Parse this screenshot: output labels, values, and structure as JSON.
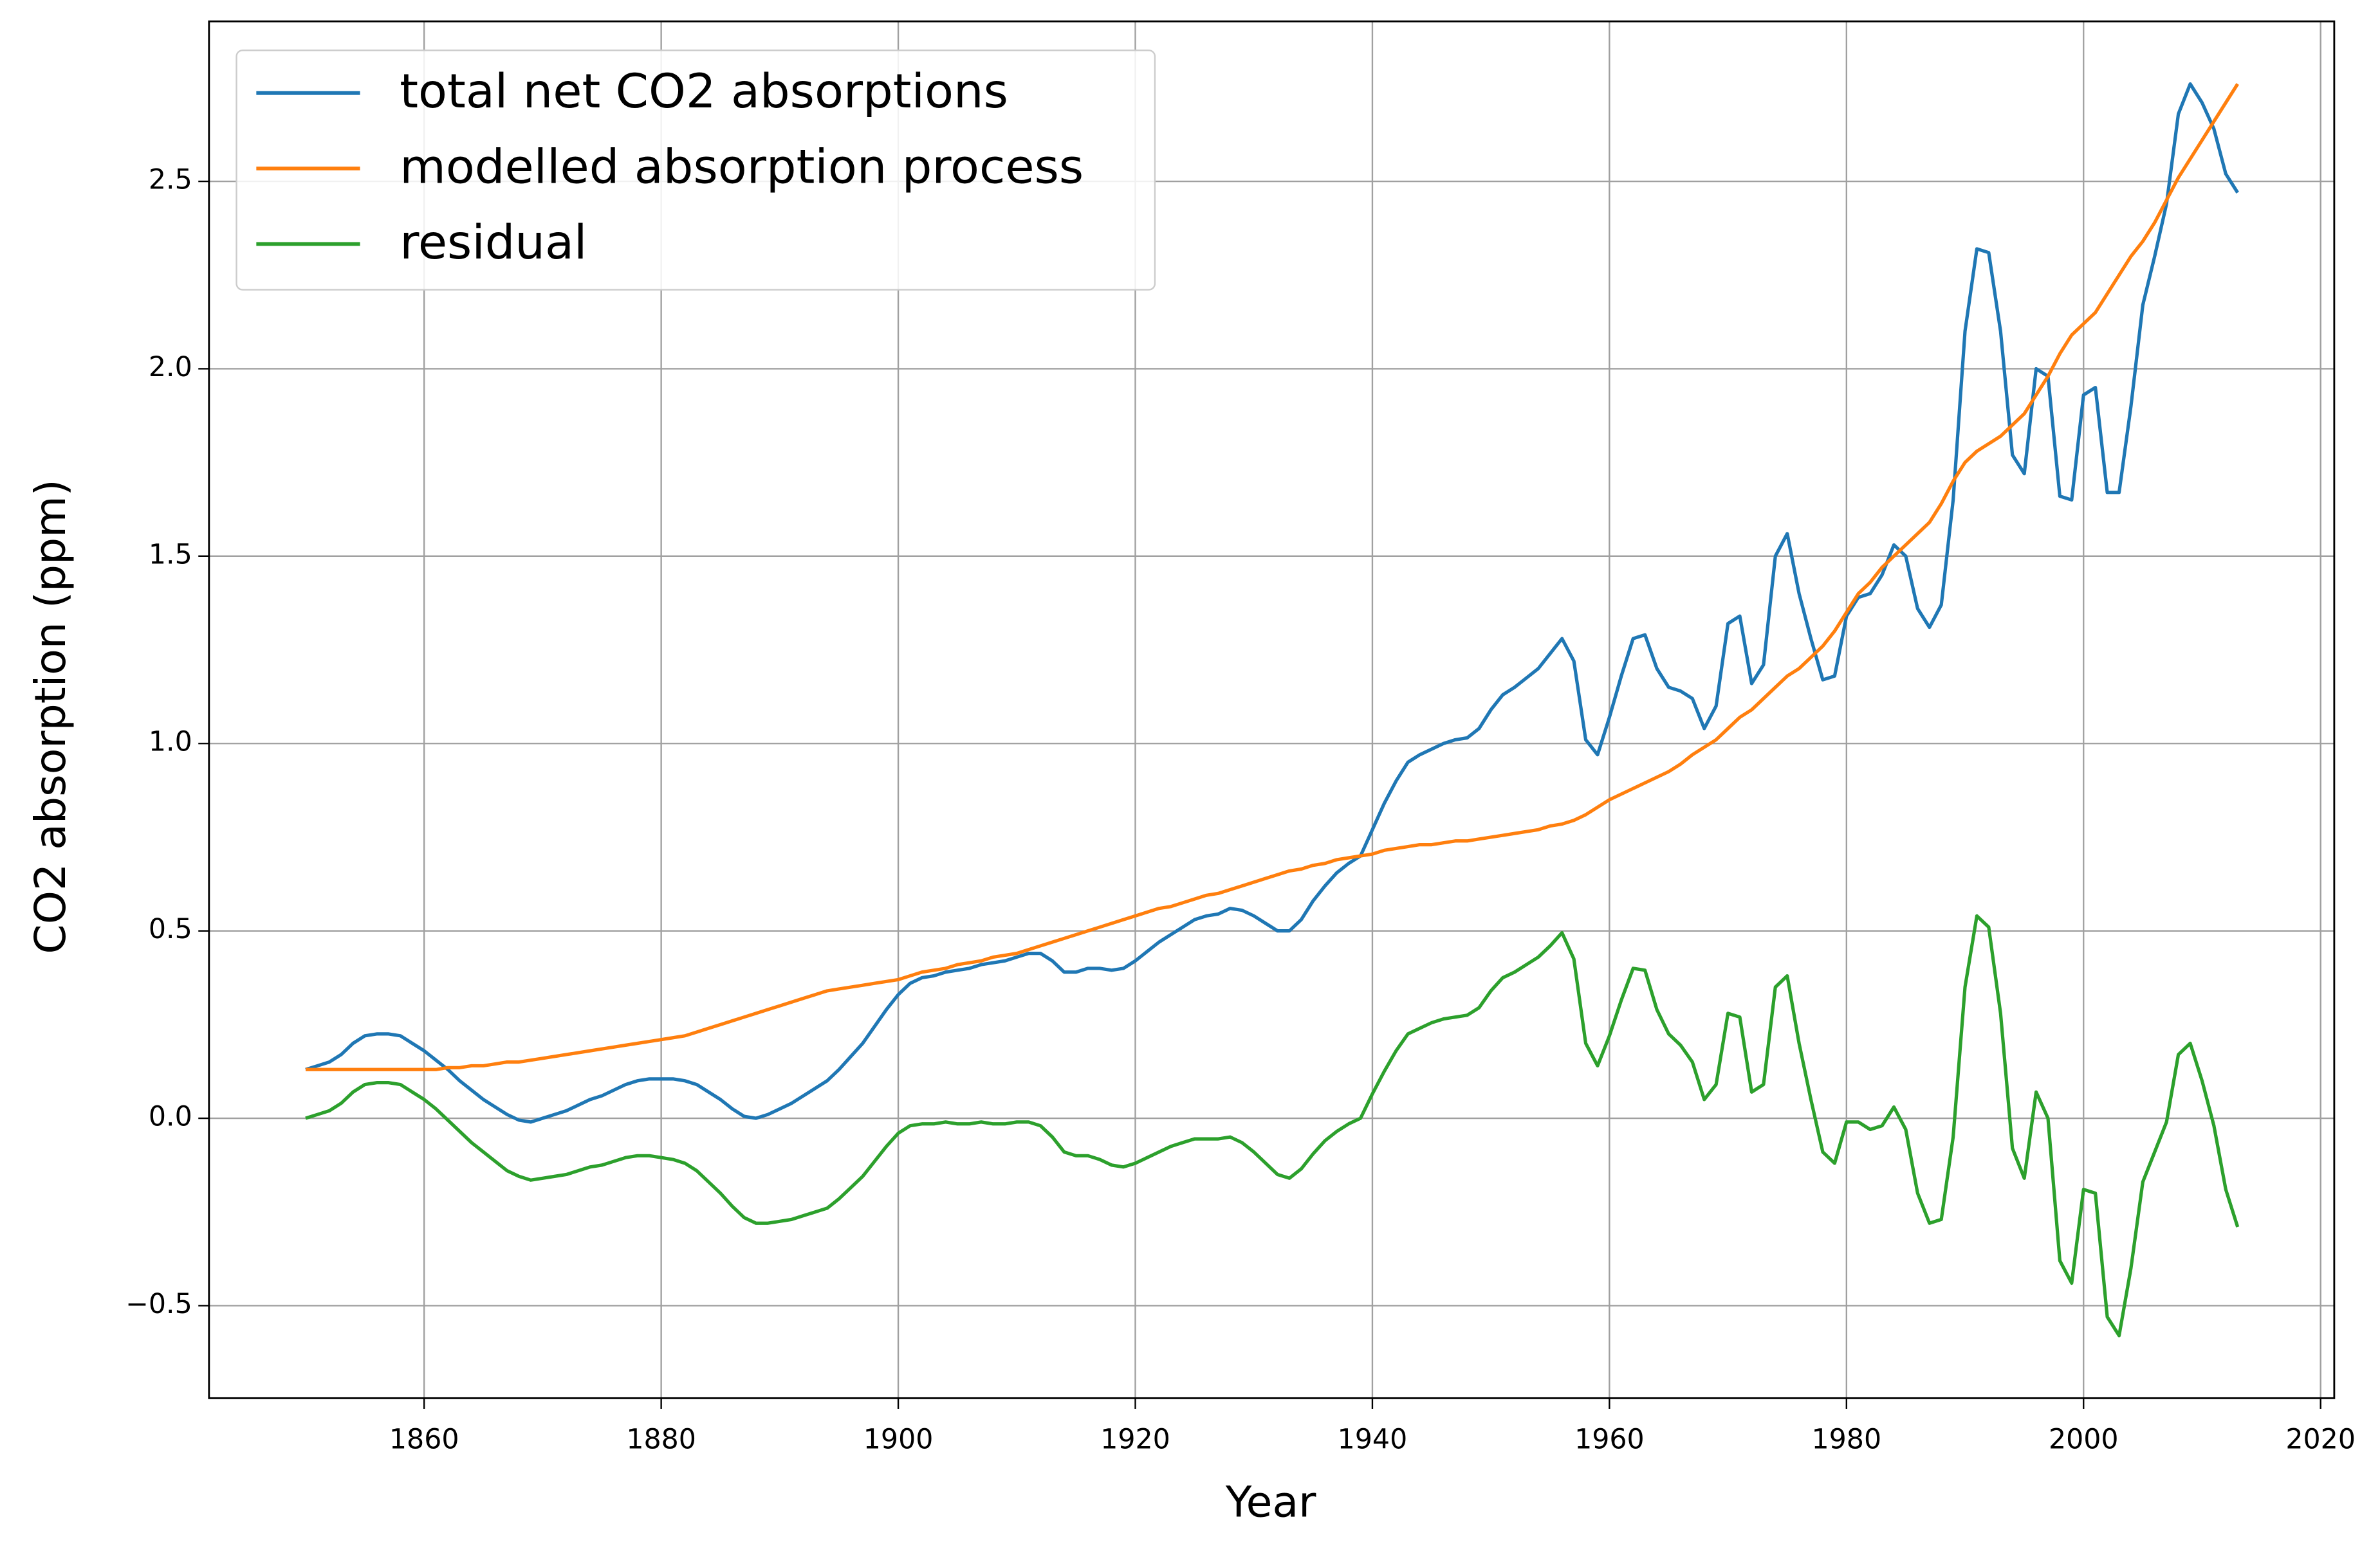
{
  "chart_data": {
    "type": "line",
    "xlabel": "Year",
    "ylabel": "CO2 absorption (ppm)",
    "x": [
      1850,
      1851,
      1852,
      1853,
      1854,
      1855,
      1856,
      1857,
      1858,
      1859,
      1860,
      1861,
      1862,
      1863,
      1864,
      1865,
      1866,
      1867,
      1868,
      1869,
      1870,
      1871,
      1872,
      1873,
      1874,
      1875,
      1876,
      1877,
      1878,
      1879,
      1880,
      1881,
      1882,
      1883,
      1884,
      1885,
      1886,
      1887,
      1888,
      1889,
      1890,
      1891,
      1892,
      1893,
      1894,
      1895,
      1896,
      1897,
      1898,
      1899,
      1900,
      1901,
      1902,
      1903,
      1904,
      1905,
      1906,
      1907,
      1908,
      1909,
      1910,
      1911,
      1912,
      1913,
      1914,
      1915,
      1916,
      1917,
      1918,
      1919,
      1920,
      1921,
      1922,
      1923,
      1924,
      1925,
      1926,
      1927,
      1928,
      1929,
      1930,
      1931,
      1932,
      1933,
      1934,
      1935,
      1936,
      1937,
      1938,
      1939,
      1940,
      1941,
      1942,
      1943,
      1944,
      1945,
      1946,
      1947,
      1948,
      1949,
      1950,
      1951,
      1952,
      1953,
      1954,
      1955,
      1956,
      1957,
      1958,
      1959,
      1960,
      1961,
      1962,
      1963,
      1964,
      1965,
      1966,
      1967,
      1968,
      1969,
      1970,
      1971,
      1972,
      1973,
      1974,
      1975,
      1976,
      1977,
      1978,
      1979,
      1980,
      1981,
      1982,
      1983,
      1984,
      1985,
      1986,
      1987,
      1988,
      1989,
      1990,
      1991,
      1992,
      1993,
      1994,
      1995,
      1996,
      1997,
      1998,
      1999,
      2000,
      2001,
      2002,
      2003,
      2004,
      2005,
      2006,
      2007,
      2008,
      2009,
      2010,
      2011,
      2012,
      2013
    ],
    "series": [
      {
        "name": "total net CO2 absorptions",
        "color": "#1f77b4",
        "values": [
          0.13,
          0.14,
          0.15,
          0.17,
          0.2,
          0.22,
          0.225,
          0.225,
          0.22,
          0.2,
          0.18,
          0.155,
          0.13,
          0.1,
          0.075,
          0.05,
          0.03,
          0.01,
          -0.005,
          -0.01,
          0.0,
          0.01,
          0.02,
          0.035,
          0.05,
          0.06,
          0.075,
          0.09,
          0.1,
          0.105,
          0.105,
          0.105,
          0.1,
          0.09,
          0.07,
          0.05,
          0.025,
          0.005,
          0.0,
          0.01,
          0.025,
          0.04,
          0.06,
          0.08,
          0.1,
          0.13,
          0.165,
          0.2,
          0.245,
          0.29,
          0.33,
          0.36,
          0.375,
          0.38,
          0.39,
          0.395,
          0.4,
          0.41,
          0.415,
          0.42,
          0.43,
          0.44,
          0.44,
          0.42,
          0.39,
          0.39,
          0.4,
          0.4,
          0.395,
          0.4,
          0.42,
          0.445,
          0.47,
          0.49,
          0.51,
          0.53,
          0.54,
          0.545,
          0.56,
          0.555,
          0.54,
          0.52,
          0.5,
          0.5,
          0.53,
          0.58,
          0.62,
          0.655,
          0.68,
          0.7,
          0.77,
          0.84,
          0.9,
          0.95,
          0.97,
          0.985,
          1.0,
          1.01,
          1.015,
          1.04,
          1.09,
          1.13,
          1.15,
          1.175,
          1.2,
          1.24,
          1.28,
          1.22,
          1.01,
          0.97,
          1.07,
          1.18,
          1.28,
          1.29,
          1.2,
          1.15,
          1.14,
          1.12,
          1.04,
          1.1,
          1.32,
          1.34,
          1.16,
          1.21,
          1.5,
          1.56,
          1.4,
          1.28,
          1.17,
          1.18,
          1.34,
          1.39,
          1.4,
          1.45,
          1.53,
          1.5,
          1.36,
          1.31,
          1.37,
          1.65,
          2.1,
          2.32,
          2.31,
          2.1,
          1.77,
          1.72,
          2.0,
          1.98,
          1.66,
          1.65,
          1.93,
          1.95,
          1.67,
          1.67,
          1.9,
          2.17,
          2.3,
          2.44,
          2.68,
          2.76,
          2.71,
          2.64,
          2.52,
          2.47
        ]
      },
      {
        "name": "modelled absorption process",
        "color": "#ff7f0e",
        "values": [
          0.13,
          0.13,
          0.13,
          0.13,
          0.13,
          0.13,
          0.13,
          0.13,
          0.13,
          0.13,
          0.13,
          0.13,
          0.135,
          0.135,
          0.14,
          0.14,
          0.145,
          0.15,
          0.15,
          0.155,
          0.16,
          0.165,
          0.17,
          0.175,
          0.18,
          0.185,
          0.19,
          0.195,
          0.2,
          0.205,
          0.21,
          0.215,
          0.22,
          0.23,
          0.24,
          0.25,
          0.26,
          0.27,
          0.28,
          0.29,
          0.3,
          0.31,
          0.32,
          0.33,
          0.34,
          0.345,
          0.35,
          0.355,
          0.36,
          0.365,
          0.37,
          0.38,
          0.39,
          0.395,
          0.4,
          0.41,
          0.415,
          0.42,
          0.43,
          0.435,
          0.44,
          0.45,
          0.46,
          0.47,
          0.48,
          0.49,
          0.5,
          0.51,
          0.52,
          0.53,
          0.54,
          0.55,
          0.56,
          0.565,
          0.575,
          0.585,
          0.595,
          0.6,
          0.61,
          0.62,
          0.63,
          0.64,
          0.65,
          0.66,
          0.665,
          0.675,
          0.68,
          0.69,
          0.695,
          0.7,
          0.705,
          0.715,
          0.72,
          0.725,
          0.73,
          0.73,
          0.735,
          0.74,
          0.74,
          0.745,
          0.75,
          0.755,
          0.76,
          0.765,
          0.77,
          0.78,
          0.785,
          0.795,
          0.81,
          0.83,
          0.85,
          0.865,
          0.88,
          0.895,
          0.91,
          0.925,
          0.945,
          0.97,
          0.99,
          1.01,
          1.04,
          1.07,
          1.09,
          1.12,
          1.15,
          1.18,
          1.2,
          1.23,
          1.26,
          1.3,
          1.35,
          1.4,
          1.43,
          1.47,
          1.5,
          1.53,
          1.56,
          1.59,
          1.64,
          1.7,
          1.75,
          1.78,
          1.8,
          1.82,
          1.85,
          1.88,
          1.93,
          1.98,
          2.04,
          2.09,
          2.12,
          2.15,
          2.2,
          2.25,
          2.3,
          2.34,
          2.39,
          2.45,
          2.51,
          2.56,
          2.61,
          2.66,
          2.71,
          2.76
        ]
      },
      {
        "name": "residual",
        "color": "#2ca02c",
        "values": [
          0.0,
          0.01,
          0.02,
          0.04,
          0.07,
          0.09,
          0.095,
          0.095,
          0.09,
          0.07,
          0.05,
          0.025,
          -0.005,
          -0.035,
          -0.065,
          -0.09,
          -0.115,
          -0.14,
          -0.155,
          -0.165,
          -0.16,
          -0.155,
          -0.15,
          -0.14,
          -0.13,
          -0.125,
          -0.115,
          -0.105,
          -0.1,
          -0.1,
          -0.105,
          -0.11,
          -0.12,
          -0.14,
          -0.17,
          -0.2,
          -0.235,
          -0.265,
          -0.28,
          -0.28,
          -0.275,
          -0.27,
          -0.26,
          -0.25,
          -0.24,
          -0.215,
          -0.185,
          -0.155,
          -0.115,
          -0.075,
          -0.04,
          -0.02,
          -0.015,
          -0.015,
          -0.01,
          -0.015,
          -0.015,
          -0.01,
          -0.015,
          -0.015,
          -0.01,
          -0.01,
          -0.02,
          -0.05,
          -0.09,
          -0.1,
          -0.1,
          -0.11,
          -0.125,
          -0.13,
          -0.12,
          -0.105,
          -0.09,
          -0.075,
          -0.065,
          -0.055,
          -0.055,
          -0.055,
          -0.05,
          -0.065,
          -0.09,
          -0.12,
          -0.15,
          -0.16,
          -0.135,
          -0.095,
          -0.06,
          -0.035,
          -0.015,
          0.0,
          0.065,
          0.125,
          0.18,
          0.225,
          0.24,
          0.255,
          0.265,
          0.27,
          0.275,
          0.295,
          0.34,
          0.375,
          0.39,
          0.41,
          0.43,
          0.46,
          0.495,
          0.425,
          0.2,
          0.14,
          0.22,
          0.315,
          0.4,
          0.395,
          0.29,
          0.225,
          0.195,
          0.15,
          0.05,
          0.09,
          0.28,
          0.27,
          0.07,
          0.09,
          0.35,
          0.38,
          0.2,
          0.05,
          -0.09,
          -0.12,
          -0.01,
          -0.01,
          -0.03,
          -0.02,
          0.03,
          -0.03,
          -0.2,
          -0.28,
          -0.27,
          -0.05,
          0.35,
          0.54,
          0.51,
          0.28,
          -0.08,
          -0.16,
          0.07,
          0.0,
          -0.38,
          -0.44,
          -0.19,
          -0.2,
          -0.53,
          -0.58,
          -0.4,
          -0.17,
          -0.09,
          -0.01,
          0.17,
          0.2,
          0.1,
          -0.02,
          -0.19,
          -0.29
        ]
      }
    ],
    "xlim": [
      1841.85,
      2021.15
    ],
    "xticks": [
      1860,
      1880,
      1900,
      1920,
      1940,
      1960,
      1980,
      2000,
      2020
    ],
    "ylim": [
      -0.747,
      2.927
    ],
    "yticks": [
      {
        "value": -0.5,
        "label": "−0.5"
      },
      {
        "value": 0,
        "label": "0.0"
      },
      {
        "value": 0.5,
        "label": "0.5"
      },
      {
        "value": 1,
        "label": "1.0"
      },
      {
        "value": 1.5,
        "label": "1.5"
      },
      {
        "value": 2,
        "label": "2.0"
      },
      {
        "value": 2.5,
        "label": "2.5"
      }
    ],
    "grid": true,
    "legend": "upper left"
  }
}
